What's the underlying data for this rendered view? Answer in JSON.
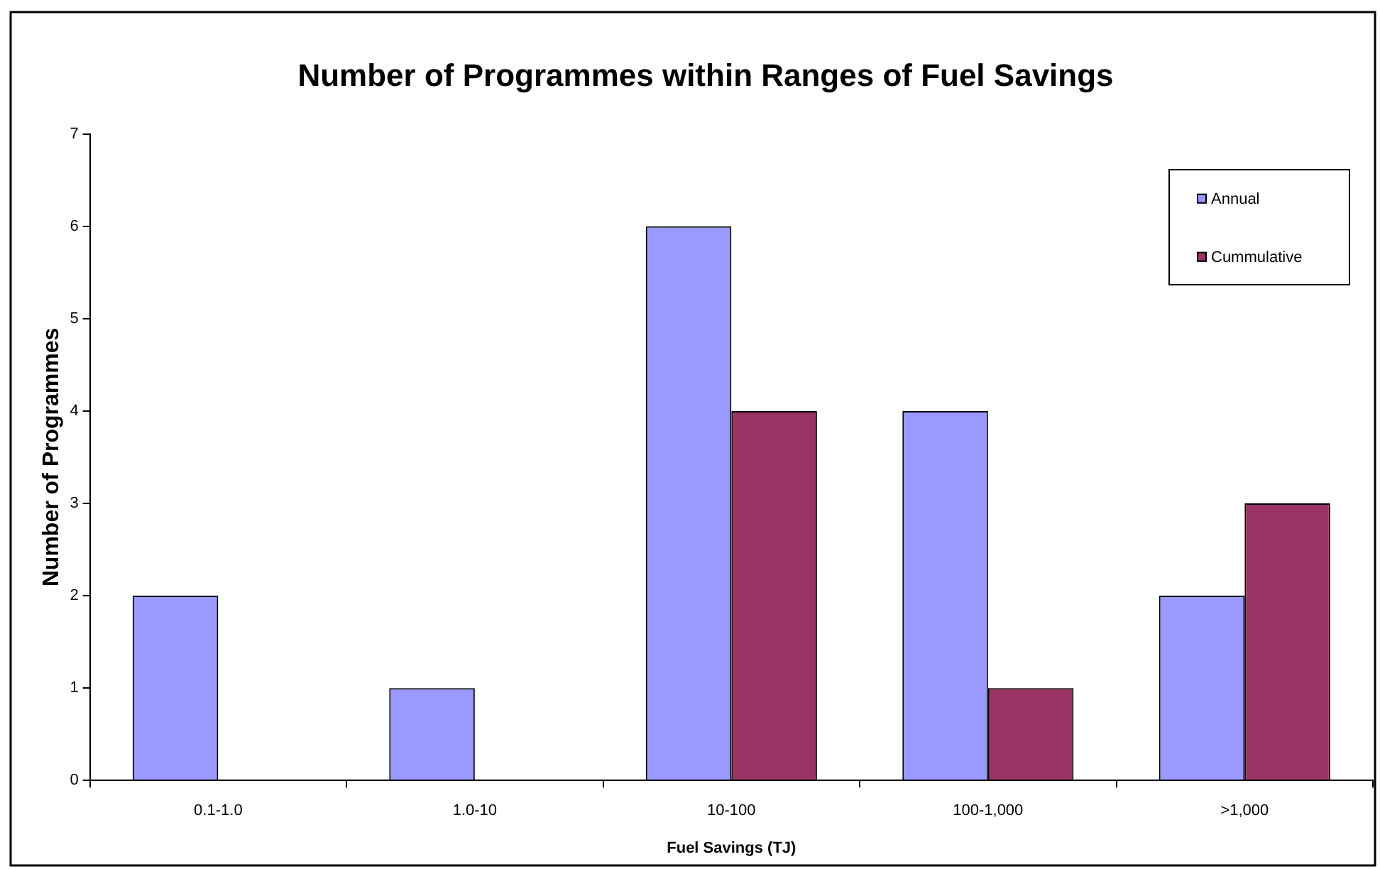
{
  "chart_data": {
    "type": "bar",
    "title": "Number of Programmes within Ranges of Fuel Savings",
    "xlabel": "Fuel Savings (TJ)",
    "ylabel": "Number of Programmes",
    "categories": [
      "0.1-1.0",
      "1.0-10",
      "10-100",
      "100-1,000",
      ">1,000"
    ],
    "series": [
      {
        "name": "Annual",
        "color": "#9999ff",
        "values": [
          2,
          1,
          6,
          4,
          2
        ]
      },
      {
        "name": "Cummulative",
        "color": "#993366",
        "values": [
          null,
          null,
          4,
          1,
          3
        ]
      }
    ],
    "ylim": [
      0,
      7
    ],
    "yticks": [
      0,
      1,
      2,
      3,
      4,
      5,
      6,
      7
    ],
    "grid": false,
    "legend": "top right"
  }
}
